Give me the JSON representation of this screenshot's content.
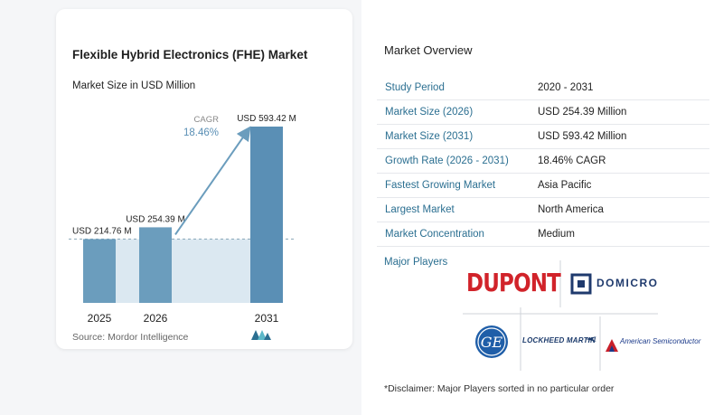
{
  "chart": {
    "title": "Flexible Hybrid Electronics (FHE) Market",
    "subtitle": "Market Size in USD Million",
    "source": "Source:  Mordor Intelligence",
    "cagr_label": "CAGR",
    "cagr_value": "18.46%"
  },
  "chart_data": {
    "type": "bar",
    "title": "Flexible Hybrid Electronics (FHE) Market",
    "subtitle": "Market Size in USD Million",
    "categories": [
      "2025",
      "2026",
      "2031"
    ],
    "values": [
      214.76,
      254.39,
      593.42
    ],
    "value_labels": [
      "USD 214.76 M",
      "USD 254.39 M",
      "USD 593.42 M"
    ],
    "ylim": [
      0,
      593.42
    ],
    "grid": false,
    "annotation": {
      "label": "CAGR",
      "value": "18.46%"
    },
    "colors": {
      "bar": "#6b9dbd",
      "bar_last": "#5a8fb5",
      "band": "#dbe8f1",
      "arrow": "#6b9dbd"
    }
  },
  "overview": {
    "title": "Market Overview",
    "rows": [
      {
        "key": "Study Period",
        "value": "2020 - 2031"
      },
      {
        "key": "Market Size (2026)",
        "value": "USD 254.39 Million"
      },
      {
        "key": "Market Size (2031)",
        "value": "USD 593.42 Million"
      },
      {
        "key": "Growth Rate (2026 - 2031)",
        "value": "18.46% CAGR"
      },
      {
        "key": "Fastest Growing Market",
        "value": "Asia Pacific"
      },
      {
        "key": "Largest Market",
        "value": "North America"
      },
      {
        "key": "Market Concentration",
        "value": "Medium"
      }
    ],
    "key_color": "#2b6f91"
  },
  "players": {
    "title": "Major Players",
    "logos": [
      {
        "name": "DuPont",
        "text": "DUPONT"
      },
      {
        "name": "Domicro",
        "text": "DOMICRO",
        "icon": "domicro-logo-icon"
      },
      {
        "name": "GE",
        "text": "GE",
        "icon": "ge-logo-icon"
      },
      {
        "name": "Lockheed Martin",
        "text": "LOCKHEED MARTIN"
      },
      {
        "name": "American Semiconductor",
        "text": "American Semiconductor"
      }
    ]
  },
  "disclaimer": "*Disclaimer: Major Players sorted in no particular order"
}
